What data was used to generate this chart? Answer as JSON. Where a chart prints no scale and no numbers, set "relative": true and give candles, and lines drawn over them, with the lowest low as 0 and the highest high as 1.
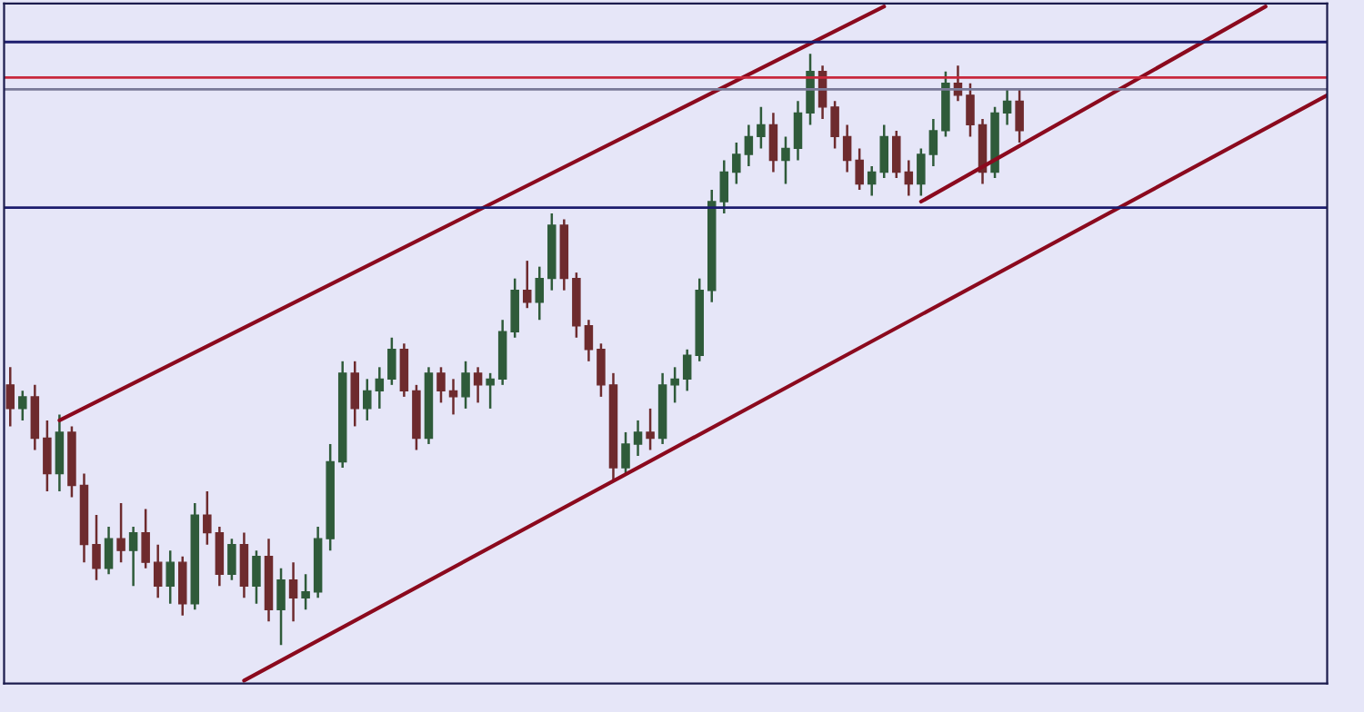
{
  "chart_data": {
    "type": "candlestick",
    "relative": true,
    "grid": false,
    "legend": false,
    "categories": [
      null,
      null,
      null,
      null,
      null,
      null,
      null,
      null,
      null,
      null,
      null,
      null,
      null,
      null,
      null,
      null,
      null,
      null,
      null,
      null,
      null,
      null,
      null,
      null,
      null,
      null,
      null,
      null,
      null,
      null,
      null,
      null,
      null,
      null,
      null,
      null,
      null,
      null,
      null,
      null,
      null,
      null,
      null,
      null,
      null,
      null,
      null,
      null,
      null,
      null,
      null,
      null,
      null,
      null,
      null,
      null,
      null,
      null,
      null,
      null,
      null,
      null,
      null,
      null,
      null,
      null,
      null,
      null,
      null,
      null,
      null,
      null,
      null,
      null,
      null,
      null,
      null,
      null,
      null,
      null,
      null,
      null,
      null,
      null,
      null,
      null,
      null,
      null,
      null,
      null,
      null,
      null,
      null,
      null,
      null,
      null,
      null,
      null,
      null,
      null,
      null,
      null,
      null,
      null,
      null,
      null,
      null,
      null
    ],
    "ohlc": [
      [
        0.44,
        0.47,
        0.37,
        0.4
      ],
      [
        0.4,
        0.43,
        0.38,
        0.42
      ],
      [
        0.42,
        0.44,
        0.33,
        0.35
      ],
      [
        0.35,
        0.38,
        0.26,
        0.29
      ],
      [
        0.29,
        0.39,
        0.26,
        0.36
      ],
      [
        0.36,
        0.37,
        0.25,
        0.27
      ],
      [
        0.27,
        0.29,
        0.14,
        0.17
      ],
      [
        0.17,
        0.22,
        0.11,
        0.13
      ],
      [
        0.13,
        0.2,
        0.12,
        0.18
      ],
      [
        0.18,
        0.24,
        0.14,
        0.16
      ],
      [
        0.16,
        0.2,
        0.1,
        0.19
      ],
      [
        0.19,
        0.23,
        0.13,
        0.14
      ],
      [
        0.14,
        0.17,
        0.08,
        0.1
      ],
      [
        0.1,
        0.16,
        0.07,
        0.14
      ],
      [
        0.14,
        0.15,
        0.05,
        0.07
      ],
      [
        0.07,
        0.24,
        0.06,
        0.22
      ],
      [
        0.22,
        0.26,
        0.17,
        0.19
      ],
      [
        0.19,
        0.2,
        0.1,
        0.12
      ],
      [
        0.12,
        0.18,
        0.11,
        0.17
      ],
      [
        0.17,
        0.19,
        0.08,
        0.1
      ],
      [
        0.1,
        0.16,
        0.07,
        0.15
      ],
      [
        0.15,
        0.18,
        0.04,
        0.06
      ],
      [
        0.06,
        0.13,
        0.0,
        0.11
      ],
      [
        0.11,
        0.14,
        0.04,
        0.08
      ],
      [
        0.08,
        0.12,
        0.06,
        0.09
      ],
      [
        0.09,
        0.2,
        0.08,
        0.18
      ],
      [
        0.18,
        0.34,
        0.16,
        0.31
      ],
      [
        0.31,
        0.48,
        0.3,
        0.46
      ],
      [
        0.46,
        0.48,
        0.37,
        0.4
      ],
      [
        0.4,
        0.45,
        0.38,
        0.43
      ],
      [
        0.43,
        0.47,
        0.4,
        0.45
      ],
      [
        0.45,
        0.52,
        0.44,
        0.5
      ],
      [
        0.5,
        0.51,
        0.42,
        0.43
      ],
      [
        0.43,
        0.44,
        0.33,
        0.35
      ],
      [
        0.35,
        0.47,
        0.34,
        0.46
      ],
      [
        0.46,
        0.47,
        0.41,
        0.43
      ],
      [
        0.43,
        0.45,
        0.39,
        0.42
      ],
      [
        0.42,
        0.48,
        0.4,
        0.46
      ],
      [
        0.46,
        0.47,
        0.41,
        0.44
      ],
      [
        0.44,
        0.46,
        0.4,
        0.45
      ],
      [
        0.45,
        0.55,
        0.44,
        0.53
      ],
      [
        0.53,
        0.62,
        0.52,
        0.6
      ],
      [
        0.6,
        0.65,
        0.57,
        0.58
      ],
      [
        0.58,
        0.64,
        0.55,
        0.62
      ],
      [
        0.62,
        0.73,
        0.6,
        0.71
      ],
      [
        0.71,
        0.72,
        0.6,
        0.62
      ],
      [
        0.62,
        0.63,
        0.52,
        0.54
      ],
      [
        0.54,
        0.55,
        0.48,
        0.5
      ],
      [
        0.5,
        0.51,
        0.42,
        0.44
      ],
      [
        0.44,
        0.46,
        0.28,
        0.3
      ],
      [
        0.3,
        0.36,
        0.29,
        0.34
      ],
      [
        0.34,
        0.38,
        0.32,
        0.36
      ],
      [
        0.36,
        0.4,
        0.33,
        0.35
      ],
      [
        0.35,
        0.46,
        0.34,
        0.44
      ],
      [
        0.44,
        0.47,
        0.41,
        0.45
      ],
      [
        0.45,
        0.5,
        0.43,
        0.49
      ],
      [
        0.49,
        0.62,
        0.48,
        0.6
      ],
      [
        0.6,
        0.77,
        0.58,
        0.75
      ],
      [
        0.75,
        0.82,
        0.73,
        0.8
      ],
      [
        0.8,
        0.85,
        0.78,
        0.83
      ],
      [
        0.83,
        0.88,
        0.81,
        0.86
      ],
      [
        0.86,
        0.91,
        0.84,
        0.88
      ],
      [
        0.88,
        0.9,
        0.8,
        0.82
      ],
      [
        0.82,
        0.86,
        0.78,
        0.84
      ],
      [
        0.84,
        0.92,
        0.82,
        0.9
      ],
      [
        0.9,
        1.0,
        0.88,
        0.97
      ],
      [
        0.97,
        0.98,
        0.89,
        0.91
      ],
      [
        0.91,
        0.92,
        0.84,
        0.86
      ],
      [
        0.86,
        0.88,
        0.8,
        0.82
      ],
      [
        0.82,
        0.84,
        0.77,
        0.78
      ],
      [
        0.78,
        0.81,
        0.76,
        0.8
      ],
      [
        0.8,
        0.88,
        0.79,
        0.86
      ],
      [
        0.86,
        0.87,
        0.79,
        0.8
      ],
      [
        0.8,
        0.82,
        0.76,
        0.78
      ],
      [
        0.78,
        0.84,
        0.76,
        0.83
      ],
      [
        0.83,
        0.89,
        0.81,
        0.87
      ],
      [
        0.87,
        0.97,
        0.86,
        0.95
      ],
      [
        0.95,
        0.98,
        0.92,
        0.93
      ],
      [
        0.93,
        0.95,
        0.86,
        0.88
      ],
      [
        0.88,
        0.89,
        0.78,
        0.8
      ],
      [
        0.8,
        0.91,
        0.79,
        0.9
      ],
      [
        0.9,
        0.94,
        0.88,
        0.92
      ],
      [
        0.92,
        0.94,
        0.85,
        0.87
      ],
      null,
      null,
      null,
      null,
      null,
      null,
      null,
      null,
      null,
      null,
      null,
      null,
      null,
      null,
      null,
      null,
      null,
      null,
      null,
      null,
      null,
      null,
      null,
      null,
      null
    ],
    "series": [
      {
        "type": "line",
        "color": "#8b0a1e",
        "values": [
          null,
          null,
          null,
          null,
          0.38,
          null,
          null,
          null,
          null,
          null,
          null,
          null,
          null,
          null,
          null,
          null,
          null,
          null,
          null,
          null,
          null,
          null,
          null,
          null,
          null,
          null,
          null,
          null,
          null,
          null,
          null,
          null,
          null,
          null,
          null,
          null,
          null,
          null,
          null,
          null,
          null,
          null,
          null,
          null,
          null,
          null,
          null,
          null,
          null,
          null,
          null,
          null,
          null,
          null,
          null,
          null,
          null,
          null,
          null,
          null,
          null,
          null,
          null,
          null,
          null,
          null,
          null,
          null,
          null,
          null,
          null,
          1.08,
          null,
          null,
          null,
          null,
          null,
          null,
          null,
          null,
          null,
          null,
          null,
          null,
          null,
          null,
          null,
          null,
          null,
          null,
          null,
          null,
          null,
          null,
          null,
          null,
          null,
          null,
          null,
          null,
          null,
          null,
          null,
          null,
          null,
          null,
          null,
          null
        ]
      },
      {
        "type": "line",
        "color": "#8b0a1e",
        "values": [
          null,
          null,
          null,
          null,
          null,
          null,
          null,
          null,
          null,
          null,
          null,
          null,
          null,
          null,
          null,
          null,
          null,
          null,
          null,
          -0.06,
          null,
          null,
          null,
          null,
          null,
          null,
          null,
          null,
          null,
          null,
          null,
          null,
          null,
          null,
          null,
          null,
          null,
          null,
          null,
          null,
          null,
          null,
          null,
          null,
          null,
          null,
          null,
          null,
          null,
          null,
          null,
          null,
          null,
          null,
          null,
          null,
          null,
          null,
          null,
          null,
          null,
          null,
          null,
          null,
          null,
          null,
          null,
          null,
          null,
          null,
          null,
          null,
          null,
          null,
          null,
          null,
          null,
          null,
          null,
          null,
          null,
          null,
          null,
          null,
          null,
          null,
          null,
          null,
          null,
          null,
          null,
          null,
          null,
          null,
          null,
          null,
          null,
          null,
          null,
          null,
          null,
          null,
          null,
          null,
          null,
          null,
          null,
          0.93
        ]
      },
      {
        "type": "line",
        "color": "#8b0a1e",
        "values": [
          null,
          null,
          null,
          null,
          null,
          null,
          null,
          null,
          null,
          null,
          null,
          null,
          null,
          null,
          null,
          null,
          null,
          null,
          null,
          null,
          null,
          null,
          null,
          null,
          null,
          null,
          null,
          null,
          null,
          null,
          null,
          null,
          null,
          null,
          null,
          null,
          null,
          null,
          null,
          null,
          null,
          null,
          null,
          null,
          null,
          null,
          null,
          null,
          null,
          null,
          null,
          null,
          null,
          null,
          null,
          null,
          null,
          null,
          null,
          null,
          null,
          null,
          null,
          null,
          null,
          null,
          null,
          null,
          null,
          null,
          null,
          null,
          null,
          null,
          0.75,
          null,
          null,
          null,
          null,
          null,
          null,
          null,
          null,
          null,
          null,
          null,
          null,
          null,
          null,
          null,
          null,
          null,
          null,
          null,
          null,
          null,
          null,
          null,
          null,
          null,
          null,
          null,
          1.08,
          null,
          null,
          null,
          null,
          null
        ]
      }
    ],
    "ref_lines": [
      {
        "axis": "y",
        "value": 1.02,
        "color": "#1c1c6e"
      },
      {
        "axis": "y",
        "value": 0.74,
        "color": "#1c1c6e"
      },
      {
        "axis": "y",
        "value": 0.96,
        "color": "#c8283c"
      },
      {
        "axis": "y",
        "value": 0.94,
        "color": "#7a7a98"
      }
    ]
  }
}
